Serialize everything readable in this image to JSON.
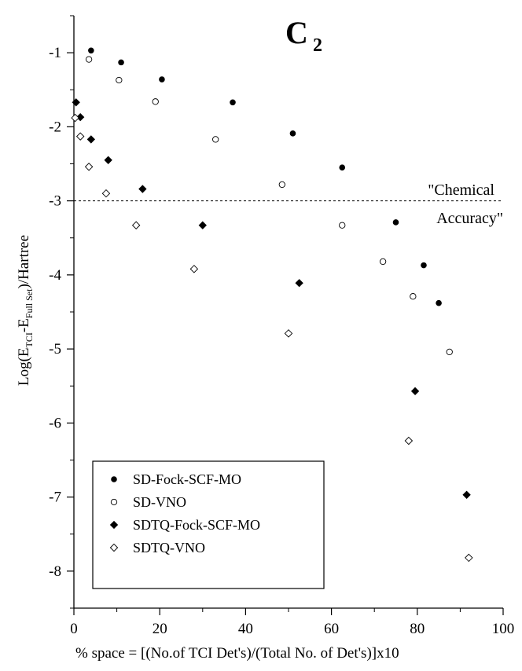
{
  "chart_data": {
    "type": "scatter",
    "title": "C",
    "title_subscript": "2",
    "ylabel": {
      "prefix": "Log(E",
      "sub1": "TCI",
      "middle": "-E",
      "sub2": "Full Set",
      "suffix": ")/Hartree"
    },
    "xlabel": "% space = [(No.of TCI Det's)/(Total No. of Det's)]x10",
    "xlim": [
      0,
      100
    ],
    "ylim": [
      -8.5,
      -0.5
    ],
    "x_ticks": [
      0,
      20,
      40,
      60,
      80,
      100
    ],
    "y_ticks": [
      -1,
      -2,
      -3,
      -4,
      -5,
      -6,
      -7,
      -8
    ],
    "reference_line": {
      "y": -3,
      "style": "dashed",
      "label_line1": "\"Chemical",
      "label_line2": "Accuracy\""
    },
    "legend_position": "bottom-left",
    "series": [
      {
        "name": "SD-Fock-SCF-MO",
        "marker": "circle-filled",
        "points": [
          [
            4,
            -0.97
          ],
          [
            11,
            -1.13
          ],
          [
            20.5,
            -1.36
          ],
          [
            37,
            -1.67
          ],
          [
            51,
            -2.09
          ],
          [
            62.5,
            -2.55
          ],
          [
            75,
            -3.29
          ],
          [
            81.5,
            -3.87
          ],
          [
            85,
            -4.38
          ]
        ]
      },
      {
        "name": "SD-VNO",
        "marker": "circle-open",
        "points": [
          [
            3.5,
            -1.09
          ],
          [
            10.5,
            -1.37
          ],
          [
            19,
            -1.66
          ],
          [
            33,
            -2.17
          ],
          [
            48.5,
            -2.78
          ],
          [
            62.5,
            -3.33
          ],
          [
            72,
            -3.82
          ],
          [
            79,
            -4.29
          ],
          [
            87.5,
            -5.04
          ]
        ]
      },
      {
        "name": "SDTQ-Fock-SCF-MO",
        "marker": "diamond-filled",
        "points": [
          [
            0.5,
            -1.67
          ],
          [
            1.5,
            -1.87
          ],
          [
            4,
            -2.17
          ],
          [
            8,
            -2.45
          ],
          [
            16,
            -2.84
          ],
          [
            30,
            -3.33
          ],
          [
            52.5,
            -4.11
          ],
          [
            79.5,
            -5.57
          ],
          [
            91.5,
            -6.97
          ]
        ]
      },
      {
        "name": "SDTQ-VNO",
        "marker": "diamond-open",
        "points": [
          [
            0.3,
            -1.88
          ],
          [
            1.5,
            -2.13
          ],
          [
            3.5,
            -2.54
          ],
          [
            7.5,
            -2.9
          ],
          [
            14.5,
            -3.33
          ],
          [
            28,
            -3.92
          ],
          [
            50,
            -4.79
          ],
          [
            78,
            -6.24
          ],
          [
            92,
            -7.82
          ]
        ]
      }
    ]
  }
}
